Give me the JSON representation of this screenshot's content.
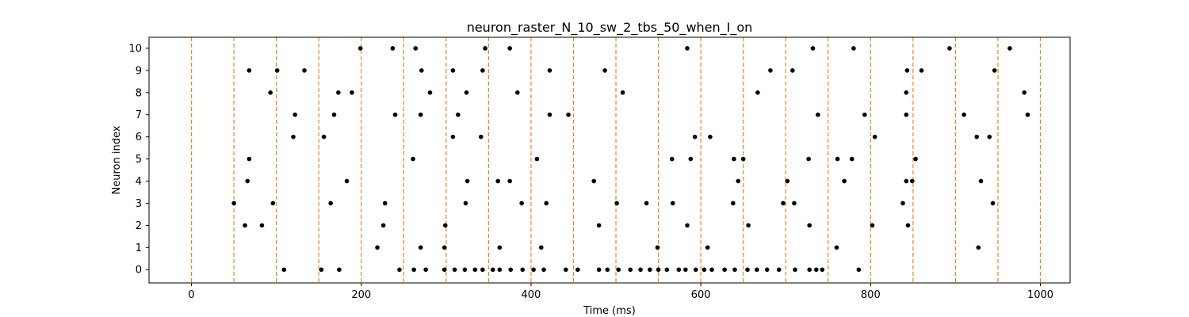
{
  "chart_data": {
    "type": "scatter",
    "title": "neuron_raster_N_10_sw_2_tbs_50_when_I_on",
    "xlabel": "Time (ms)",
    "ylabel": "Neuron index",
    "xlim": [
      -50,
      1035
    ],
    "ylim": [
      -0.6,
      10.5
    ],
    "xticks": [
      0,
      200,
      400,
      600,
      800,
      1000
    ],
    "yticks": [
      0,
      1,
      2,
      3,
      4,
      5,
      6,
      7,
      8,
      9,
      10
    ],
    "grid": false,
    "marker_color": "#000000",
    "vlines": {
      "x": [
        0,
        50,
        100,
        150,
        200,
        250,
        300,
        350,
        400,
        450,
        500,
        550,
        600,
        650,
        700,
        750,
        800,
        850,
        900,
        950,
        1000
      ],
      "color": "#ff7f0e",
      "style": "dashed"
    },
    "spikes": [
      {
        "neuron": 0,
        "times": [
          109,
          153,
          174,
          245,
          262,
          276,
          298,
          310,
          322,
          334,
          343,
          355,
          363,
          376,
          390,
          403,
          415,
          441,
          455,
          480,
          490,
          503,
          517,
          529,
          540,
          550,
          560,
          574,
          582,
          594,
          604,
          613,
          628,
          640,
          655,
          666,
          678,
          692,
          711,
          728,
          736,
          743,
          786
        ]
      },
      {
        "neuron": 1,
        "times": [
          219,
          270,
          298,
          363,
          412,
          549,
          608,
          760,
          927
        ]
      },
      {
        "neuron": 2,
        "times": [
          63,
          83,
          226,
          299,
          480,
          584,
          656,
          728,
          802,
          844
        ]
      },
      {
        "neuron": 3,
        "times": [
          50,
          96,
          164,
          228,
          323,
          389,
          418,
          501,
          536,
          567,
          638,
          697,
          710,
          838,
          944
        ]
      },
      {
        "neuron": 4,
        "times": [
          66,
          183,
          325,
          361,
          375,
          474,
          644,
          702,
          769,
          842,
          849,
          930
        ]
      },
      {
        "neuron": 5,
        "times": [
          68,
          261,
          407,
          566,
          588,
          639,
          650,
          727,
          761,
          778,
          853
        ]
      },
      {
        "neuron": 6,
        "times": [
          120,
          156,
          308,
          341,
          593,
          611,
          805,
          925,
          940
        ]
      },
      {
        "neuron": 7,
        "times": [
          122,
          168,
          240,
          270,
          314,
          422,
          444,
          738,
          793,
          842,
          910,
          985
        ]
      },
      {
        "neuron": 8,
        "times": [
          93,
          173,
          189,
          281,
          324,
          384,
          508,
          667,
          842,
          981
        ]
      },
      {
        "neuron": 9,
        "times": [
          68,
          101,
          133,
          271,
          308,
          343,
          422,
          487,
          682,
          708,
          843,
          860,
          946
        ]
      },
      {
        "neuron": 10,
        "times": [
          199,
          237,
          264,
          346,
          375,
          584,
          732,
          780,
          893,
          964
        ]
      }
    ]
  }
}
